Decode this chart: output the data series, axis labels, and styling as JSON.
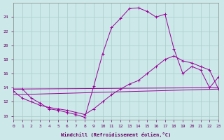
{
  "background_color": "#cce8e8",
  "line_color": "#990099",
  "grid_color": "#aacccc",
  "xlabel": "Windchill (Refroidissement éolien,°C)",
  "xlim": [
    0,
    23
  ],
  "ylim": [
    9.5,
    26.0
  ],
  "yticks": [
    10,
    12,
    14,
    16,
    18,
    20,
    22,
    24
  ],
  "xticks": [
    0,
    1,
    2,
    3,
    4,
    5,
    6,
    7,
    8,
    9,
    10,
    11,
    12,
    13,
    14,
    15,
    16,
    17,
    18,
    19,
    20,
    21,
    22,
    23
  ],
  "curve1_x": [
    0,
    1,
    2,
    3,
    4,
    5,
    6,
    7,
    8,
    9,
    10,
    11,
    12,
    13,
    14,
    15,
    16,
    17,
    18,
    19,
    20,
    21,
    22,
    23
  ],
  "curve1_y": [
    13.8,
    13.8,
    12.5,
    11.8,
    11.0,
    10.8,
    10.5,
    10.2,
    9.8,
    14.2,
    18.8,
    22.5,
    23.8,
    25.2,
    25.3,
    24.8,
    24.0,
    24.4,
    19.5,
    16.0,
    17.0,
    16.5,
    14.0,
    15.5
  ],
  "curve2_x": [
    0,
    1,
    2,
    3,
    4,
    5,
    6,
    7,
    8,
    9,
    10,
    11,
    12,
    13,
    14,
    15,
    16,
    17,
    18,
    19,
    20,
    21,
    22,
    23
  ],
  "curve2_y": [
    13.5,
    12.5,
    12.0,
    11.5,
    11.2,
    11.0,
    10.8,
    10.5,
    10.2,
    11.0,
    12.0,
    13.0,
    13.8,
    14.5,
    15.0,
    16.0,
    17.0,
    18.0,
    18.5,
    17.8,
    17.5,
    17.0,
    16.5,
    13.8
  ],
  "curve3_x": [
    0,
    23
  ],
  "curve3_y": [
    13.8,
    14.0
  ],
  "curve4_x": [
    0,
    23
  ],
  "curve4_y": [
    13.0,
    13.8
  ]
}
